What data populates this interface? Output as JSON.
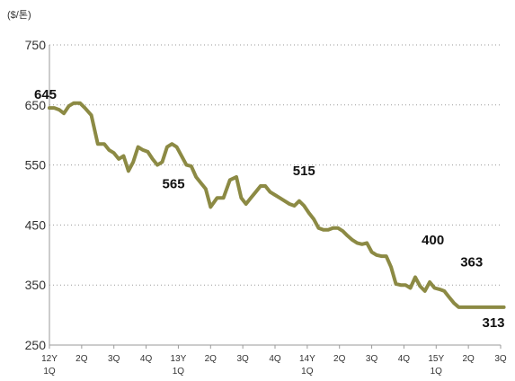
{
  "chart_data": {
    "type": "line",
    "unit_label": "($/톤)",
    "y_ticks": [
      "750",
      "650",
      "550",
      "450",
      "350",
      "250"
    ],
    "ylim": [
      250,
      750
    ],
    "grid": "horizontal dotted",
    "line_color": "#8c8a44",
    "x_ticks": [
      {
        "line1": "12Y",
        "line2": "1Q"
      },
      {
        "line1": "2Q",
        "line2": ""
      },
      {
        "line1": "3Q",
        "line2": ""
      },
      {
        "line1": "4Q",
        "line2": ""
      },
      {
        "line1": "13Y",
        "line2": "1Q"
      },
      {
        "line1": "2Q",
        "line2": ""
      },
      {
        "line1": "3Q",
        "line2": ""
      },
      {
        "line1": "4Q",
        "line2": ""
      },
      {
        "line1": "14Y",
        "line2": "1Q"
      },
      {
        "line1": "2Q",
        "line2": ""
      },
      {
        "line1": "3Q",
        "line2": ""
      },
      {
        "line1": "4Q",
        "line2": ""
      },
      {
        "line1": "15Y",
        "line2": "1Q"
      },
      {
        "line1": "2Q",
        "line2": ""
      },
      {
        "line1": "3Q",
        "line2": ""
      }
    ],
    "x": [
      0,
      0.15,
      0.3,
      0.45,
      0.6,
      0.75,
      0.95,
      1.1,
      1.3,
      1.5,
      1.7,
      1.85,
      2.0,
      2.15,
      2.3,
      2.45,
      2.6,
      2.75,
      2.9,
      3.05,
      3.2,
      3.35,
      3.5,
      3.65,
      3.8,
      3.95,
      4.1,
      4.25,
      4.4,
      4.55,
      4.7,
      4.85,
      5.0,
      5.2,
      5.4,
      5.6,
      5.8,
      5.95,
      6.1,
      6.25,
      6.4,
      6.55,
      6.7,
      6.85,
      7.0,
      7.15,
      7.3,
      7.45,
      7.6,
      7.75,
      7.9,
      8.05,
      8.2,
      8.35,
      8.5,
      8.65,
      8.8,
      8.95,
      9.1,
      9.25,
      9.4,
      9.55,
      9.7,
      9.85,
      10.0,
      10.15,
      10.3,
      10.45,
      10.6,
      10.75,
      10.9,
      11.05,
      11.2,
      11.35,
      11.5,
      11.65,
      11.8,
      11.95,
      12.1,
      12.25,
      12.4,
      12.55,
      12.7,
      12.85,
      13.0,
      13.15,
      13.3,
      13.45,
      13.6,
      13.75,
      13.9,
      14.0,
      14.1
    ],
    "y": [
      645,
      645,
      642,
      636,
      648,
      653,
      653,
      645,
      633,
      585,
      585,
      575,
      570,
      560,
      565,
      540,
      555,
      580,
      575,
      572,
      560,
      550,
      555,
      580,
      585,
      580,
      565,
      550,
      548,
      530,
      520,
      510,
      480,
      495,
      495,
      525,
      530,
      495,
      485,
      495,
      505,
      515,
      515,
      505,
      500,
      495,
      490,
      485,
      482,
      490,
      482,
      470,
      460,
      445,
      442,
      442,
      445,
      445,
      440,
      432,
      425,
      420,
      418,
      420,
      405,
      400,
      398,
      398,
      380,
      352,
      350,
      350,
      345,
      363,
      348,
      340,
      355,
      345,
      343,
      340,
      330,
      320,
      313,
      313,
      313,
      313,
      313,
      313,
      313,
      313,
      313,
      313,
      313
    ],
    "data_labels": [
      {
        "text": "645",
        "x": 0,
        "y": 645
      },
      {
        "text": "565",
        "x": 3.85,
        "y": 550
      },
      {
        "text": "515",
        "x": 7.9,
        "y": 515
      },
      {
        "text": "400",
        "x": 11.9,
        "y": 400
      },
      {
        "text": "363",
        "x": 13.1,
        "y": 363
      },
      {
        "text": "313",
        "x": 14.1,
        "y": 313
      }
    ]
  }
}
